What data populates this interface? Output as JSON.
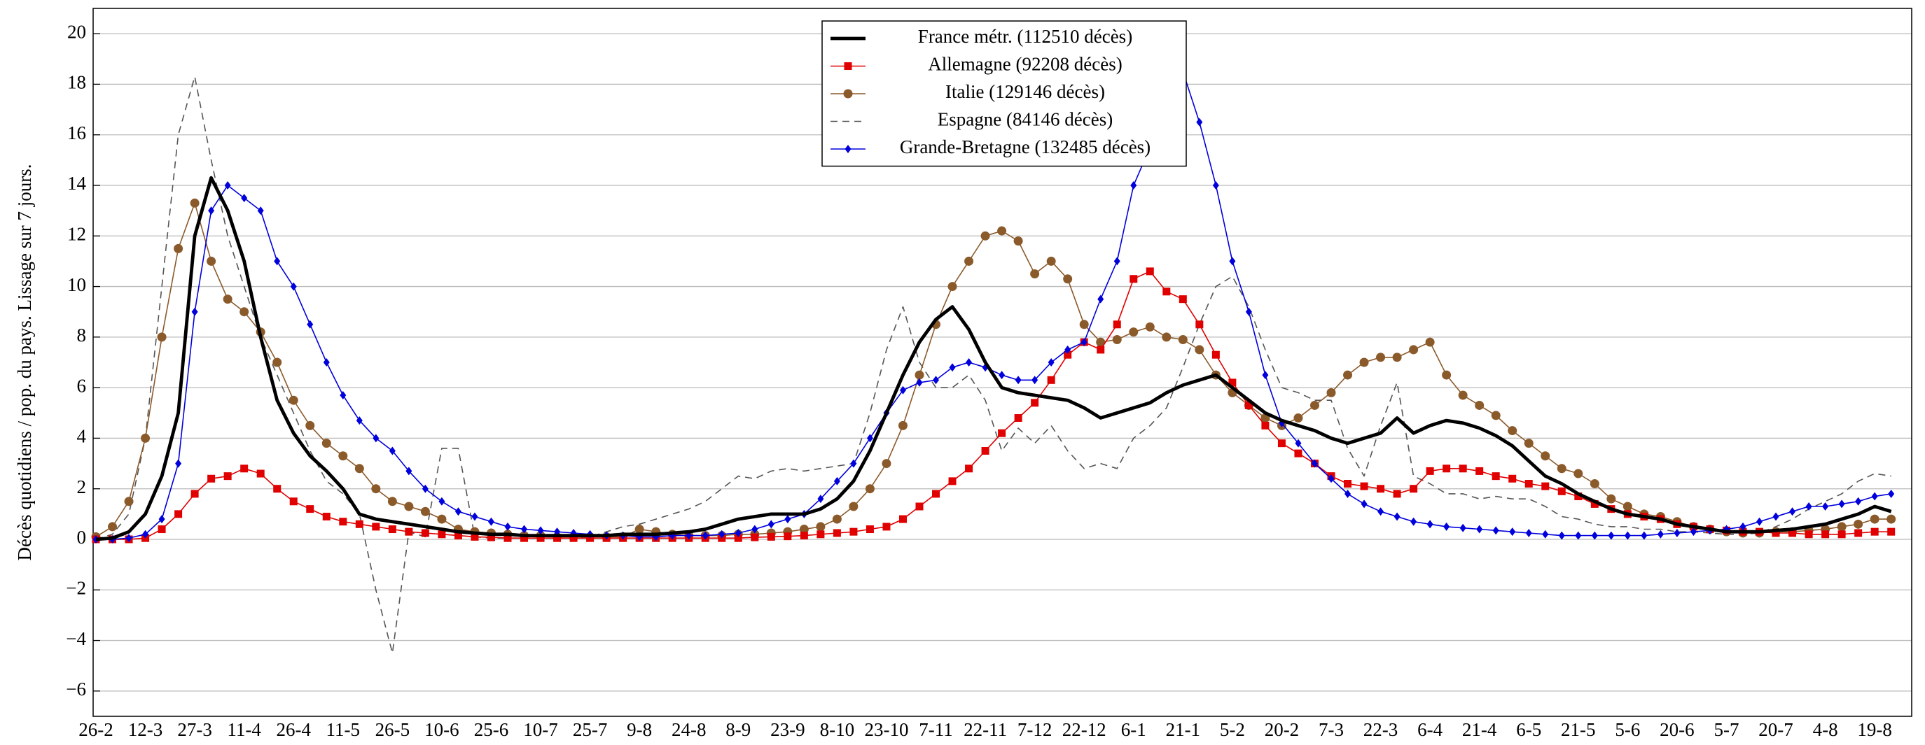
{
  "chart_data": {
    "type": "line",
    "y_label": "Décès quotidiens / pop. du pays. Lissage sur 7 jours.",
    "categories": [
      "26-2",
      null,
      null,
      "12-3",
      null,
      null,
      "27-3",
      null,
      null,
      "11-4",
      null,
      null,
      "26-4",
      null,
      null,
      "11-5",
      null,
      null,
      "26-5",
      null,
      null,
      "10-6",
      null,
      null,
      "25-6",
      null,
      null,
      "10-7",
      null,
      null,
      "25-7",
      null,
      null,
      "9-8",
      null,
      null,
      "24-8",
      null,
      null,
      "8-9",
      null,
      null,
      "23-9",
      null,
      null,
      "8-10",
      null,
      null,
      "23-10",
      null,
      null,
      "7-11",
      null,
      null,
      "22-11",
      null,
      null,
      "7-12",
      null,
      null,
      "22-12",
      null,
      null,
      "6-1",
      null,
      null,
      "21-1",
      null,
      null,
      "5-2",
      null,
      null,
      "20-2",
      null,
      null,
      "7-3",
      null,
      null,
      "22-3",
      null,
      null,
      "6-4",
      null,
      null,
      "21-4",
      null,
      null,
      "6-5",
      null,
      null,
      "21-5",
      null,
      null,
      "5-6",
      null,
      null,
      "20-6",
      null,
      null,
      "5-7",
      null,
      null,
      "20-7",
      null,
      null,
      "4-8",
      null,
      null,
      "19-8",
      null
    ],
    "series": [
      {
        "name": "France métr. (112510 décès)",
        "color": "#000000",
        "width": 3,
        "values": [
          0,
          0.05,
          0.3,
          1,
          2.5,
          5,
          12,
          14.3,
          13,
          11,
          8,
          5.5,
          4.2,
          3.3,
          2.7,
          2,
          1,
          0.8,
          0.7,
          0.6,
          0.5,
          0.4,
          0.3,
          0.25,
          0.2,
          0.2,
          0.15,
          0.15,
          0.15,
          0.15,
          0.15,
          0.15,
          0.2,
          0.2,
          0.2,
          0.25,
          0.3,
          0.4,
          0.6,
          0.8,
          0.9,
          1,
          1,
          1,
          1.2,
          1.6,
          2.3,
          3.5,
          5,
          6.5,
          7.8,
          8.7,
          9.2,
          8.3,
          7,
          6,
          5.8,
          5.7,
          5.6,
          5.5,
          5.2,
          4.8,
          5,
          5.2,
          5.4,
          5.8,
          6.1,
          6.3,
          6.5,
          6,
          5.5,
          5,
          4.7,
          4.5,
          4.3,
          4,
          3.8,
          4,
          4.2,
          4.8,
          4.2,
          4.5,
          4.7,
          4.6,
          4.4,
          4.1,
          3.7,
          3.1,
          2.5,
          2.2,
          1.8,
          1.5,
          1.2,
          1,
          0.9,
          0.8,
          0.6,
          0.5,
          0.4,
          0.3,
          0.3,
          0.3,
          0.35,
          0.4,
          0.5,
          0.6,
          0.8,
          1,
          1.3,
          1.1
        ]
      },
      {
        "name": "Allemagne (92208 décès)",
        "color": "#e00000",
        "width": 1,
        "marker": "square",
        "values": [
          0,
          0,
          0,
          0.05,
          0.4,
          1,
          1.8,
          2.4,
          2.5,
          2.8,
          2.6,
          2,
          1.5,
          1.2,
          0.9,
          0.7,
          0.6,
          0.5,
          0.4,
          0.3,
          0.25,
          0.2,
          0.15,
          0.1,
          0.08,
          0.05,
          0.05,
          0.05,
          0.05,
          0.05,
          0.05,
          0.05,
          0.05,
          0.05,
          0.05,
          0.05,
          0.05,
          0.05,
          0.05,
          0.05,
          0.08,
          0.1,
          0.12,
          0.15,
          0.2,
          0.25,
          0.3,
          0.4,
          0.5,
          0.8,
          1.3,
          1.8,
          2.3,
          2.8,
          3.5,
          4.2,
          4.8,
          5.4,
          6.3,
          7.3,
          7.8,
          7.5,
          8.5,
          10.3,
          10.6,
          9.8,
          9.5,
          8.5,
          7.3,
          6.2,
          5.3,
          4.5,
          3.8,
          3.4,
          3,
          2.5,
          2.2,
          2.1,
          2,
          1.8,
          2,
          2.7,
          2.8,
          2.8,
          2.7,
          2.5,
          2.4,
          2.2,
          2.1,
          1.9,
          1.7,
          1.4,
          1.2,
          1,
          0.9,
          0.8,
          0.6,
          0.5,
          0.4,
          0.35,
          0.3,
          0.3,
          0.25,
          0.25,
          0.2,
          0.2,
          0.2,
          0.25,
          0.3,
          0.3
        ]
      },
      {
        "name": "Italie (129146 décès)",
        "color": "#8b5a2b",
        "width": 1,
        "marker": "circle",
        "values": [
          0.1,
          0.5,
          1.5,
          4,
          8,
          11.5,
          13.3,
          11,
          9.5,
          9,
          8.2,
          7,
          5.5,
          4.5,
          3.8,
          3.3,
          2.8,
          2,
          1.5,
          1.3,
          1.1,
          0.8,
          0.4,
          0.3,
          0.25,
          0.2,
          0.15,
          0.15,
          0.1,
          0.1,
          0.1,
          0.1,
          0.1,
          0.4,
          0.3,
          0.2,
          0.15,
          0.15,
          0.15,
          0.2,
          0.2,
          0.25,
          0.3,
          0.4,
          0.5,
          0.8,
          1.3,
          2,
          3,
          4.5,
          6.5,
          8.5,
          10,
          11,
          12,
          12.2,
          11.8,
          10.5,
          11,
          10.3,
          8.5,
          7.8,
          7.9,
          8.2,
          8.4,
          8,
          7.9,
          7.5,
          6.5,
          5.8,
          5.3,
          4.8,
          4.5,
          4.8,
          5.3,
          5.8,
          6.5,
          7,
          7.2,
          7.2,
          7.5,
          7.8,
          6.5,
          5.7,
          5.3,
          4.9,
          4.3,
          3.8,
          3.3,
          2.8,
          2.6,
          2.2,
          1.6,
          1.3,
          1,
          0.9,
          0.7,
          0.5,
          0.4,
          0.3,
          0.25,
          0.25,
          0.3,
          0.3,
          0.35,
          0.4,
          0.5,
          0.6,
          0.8,
          0.8
        ]
      },
      {
        "name": "Espagne (84146 décès)",
        "color": "#555555",
        "width": 1,
        "dash": true,
        "values": [
          0,
          0.2,
          1,
          4,
          10,
          16,
          18.3,
          15,
          12,
          10,
          8,
          6.5,
          5,
          3.5,
          2.3,
          1.8,
          1,
          -2,
          -4.5,
          0.3,
          0.1,
          3.6,
          3.6,
          0.1,
          0.05,
          0.05,
          0.05,
          0.05,
          0.05,
          0.05,
          0.1,
          0.3,
          0.5,
          0.6,
          0.8,
          1,
          1.2,
          1.5,
          2,
          2.5,
          2.4,
          2.7,
          2.8,
          2.7,
          2.8,
          2.9,
          3,
          5,
          7.5,
          9.2,
          7,
          6,
          6,
          6.5,
          5.5,
          3.5,
          4.4,
          3.8,
          4.5,
          3.5,
          2.8,
          3,
          2.8,
          4,
          4.5,
          5.2,
          6.8,
          8.5,
          10,
          10.4,
          9.2,
          7.5,
          6,
          5.8,
          5.5,
          5.5,
          3.6,
          2.5,
          4.5,
          6.2,
          2.5,
          2.2,
          1.8,
          1.8,
          1.6,
          1.7,
          1.6,
          1.6,
          1.3,
          0.9,
          0.8,
          0.6,
          0.5,
          0.5,
          0.4,
          0.4,
          0.3,
          0.3,
          0.25,
          0.2,
          0.2,
          0.25,
          0.5,
          0.8,
          1.2,
          1.5,
          1.8,
          2.3,
          2.6,
          2.5
        ]
      },
      {
        "name": "Grande-Bretagne (132485 décès)",
        "color": "#0000dd",
        "width": 1,
        "marker": "diamond",
        "values": [
          0,
          0,
          0.05,
          0.2,
          0.8,
          3,
          9,
          13,
          14,
          13.5,
          13,
          11,
          10,
          8.5,
          7,
          5.7,
          4.7,
          4,
          3.5,
          2.7,
          2,
          1.5,
          1.1,
          0.9,
          0.7,
          0.5,
          0.4,
          0.35,
          0.3,
          0.25,
          0.2,
          0.15,
          0.15,
          0.1,
          0.1,
          0.15,
          0.15,
          0.15,
          0.2,
          0.25,
          0.4,
          0.6,
          0.8,
          1,
          1.6,
          2.3,
          3,
          4,
          5,
          5.9,
          6.2,
          6.3,
          6.8,
          7,
          6.8,
          6.5,
          6.3,
          6.3,
          7,
          7.5,
          7.8,
          9.5,
          11,
          14,
          15.5,
          17.5,
          18.5,
          16.5,
          14,
          11,
          9,
          6.5,
          4.6,
          3.8,
          3,
          2.4,
          1.8,
          1.4,
          1.1,
          0.9,
          0.7,
          0.6,
          0.5,
          0.45,
          0.4,
          0.35,
          0.3,
          0.25,
          0.2,
          0.15,
          0.15,
          0.15,
          0.15,
          0.15,
          0.15,
          0.2,
          0.25,
          0.3,
          0.35,
          0.4,
          0.5,
          0.7,
          0.9,
          1.1,
          1.3,
          1.3,
          1.4,
          1.5,
          1.7,
          1.8
        ]
      }
    ],
    "ylim": [
      -7,
      21
    ],
    "yticks": [
      {
        "value": -6,
        "label": "−6"
      },
      {
        "value": -4,
        "label": "−4"
      },
      {
        "value": -2,
        "label": "−2"
      },
      0,
      2,
      4,
      6,
      8,
      10,
      12,
      14,
      16,
      18,
      20
    ],
    "grid": true,
    "legend": "top"
  }
}
